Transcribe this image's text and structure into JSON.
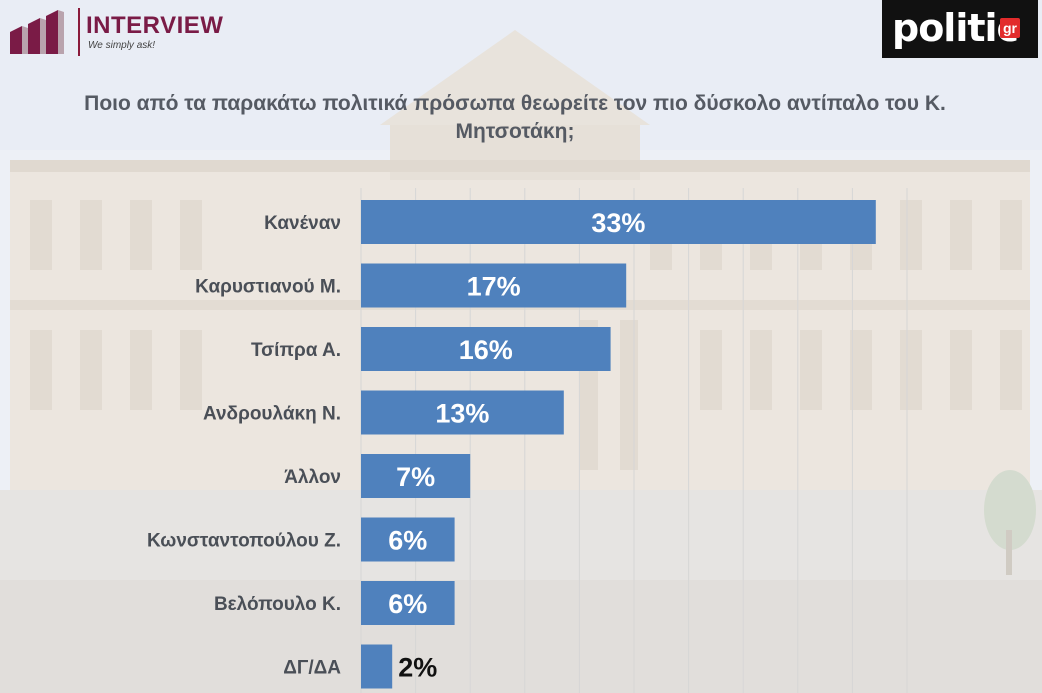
{
  "header": {
    "brand_name": "INTERVIEW",
    "brand_tagline": "We simply ask!",
    "partner_logo": "politic",
    "partner_suffix": "gr"
  },
  "colors": {
    "bar": "#4f81bd",
    "brand": "#7a1b46",
    "partner_accent": "#e22b2b"
  },
  "chart_data": {
    "type": "bar",
    "orientation": "horizontal",
    "title": "Ποιο από τα παρακάτω πολιτικά πρόσωπα θεωρείτε τον πιο δύσκολο αντίπαλο του Κ. Μητσοτάκη;",
    "categories": [
      "Κανέναν",
      "Καρυστιανού Μ.",
      "Τσίπρα Α.",
      "Ανδρουλάκη Ν.",
      "Άλλον",
      "Κωνσταντοπούλου Ζ.",
      "Βελόπουλο Κ.",
      "ΔΓ/ΔΑ"
    ],
    "values": [
      33,
      17,
      16,
      13,
      7,
      6,
      6,
      2
    ],
    "value_labels": [
      "33%",
      "17%",
      "16%",
      "13%",
      "7%",
      "6%",
      "6%",
      "2%"
    ],
    "xlim": [
      0,
      35
    ],
    "grid": true,
    "legend": "none"
  }
}
